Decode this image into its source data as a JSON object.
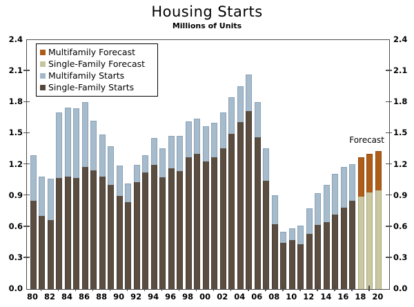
{
  "header": {
    "title": "Housing Starts",
    "subtitle": "Millions of Units"
  },
  "annotations": {
    "forecast_label": "Forecast"
  },
  "legend": [
    {
      "label": "Multifamily Forecast",
      "color": "#ac5a16"
    },
    {
      "label": "Single-Family Forecast",
      "color": "#c6c49c"
    },
    {
      "label": "Multifamily Starts",
      "color": "#a2b8ca"
    },
    {
      "label": "Single-Family Starts",
      "color": "#55473c"
    }
  ],
  "colors": {
    "axis": "#4a4a4a",
    "single_family": {
      "fill": "#5c4d41",
      "edge": "#463b32"
    },
    "multifamily": {
      "fill": "#a6bccd",
      "edge": "#8aa2b5"
    },
    "single_family_forecast": {
      "fill": "#cac8a0",
      "edge": "#a8a67e"
    },
    "multifamily_forecast": {
      "fill": "#b05e17",
      "edge": "#8e4a10"
    }
  },
  "chart_data": {
    "type": "bar",
    "stacked": true,
    "title": "Housing Starts",
    "subtitle": "Millions of Units",
    "units": "millions of units",
    "grid": false,
    "legend_position": "top-left",
    "ylim": [
      0,
      2.4
    ],
    "ytick_step": 0.3,
    "ytick_labels": [
      "0.0",
      "0.3",
      "0.6",
      "0.9",
      "1.2",
      "1.5",
      "1.8",
      "2.1",
      "2.4"
    ],
    "categories": [
      "1980",
      "1981",
      "1982",
      "1983",
      "1984",
      "1985",
      "1986",
      "1987",
      "1988",
      "1989",
      "1990",
      "1991",
      "1992",
      "1993",
      "1994",
      "1995",
      "1996",
      "1997",
      "1998",
      "1999",
      "2000",
      "2001",
      "2002",
      "2003",
      "2004",
      "2005",
      "2006",
      "2007",
      "2008",
      "2009",
      "2010",
      "2011",
      "2012",
      "2013",
      "2014",
      "2015",
      "2016",
      "2017",
      "2018",
      "2019",
      "2020"
    ],
    "xtick_labels": [
      "80",
      "82",
      "84",
      "86",
      "88",
      "90",
      "92",
      "94",
      "96",
      "98",
      "00",
      "02",
      "04",
      "06",
      "08",
      "10",
      "12",
      "14",
      "16",
      "18",
      "20"
    ],
    "forecast_years": [
      "2018",
      "2019",
      "2020"
    ],
    "series": [
      {
        "name": "Single-Family Starts",
        "values": [
          0.852,
          0.705,
          0.663,
          1.068,
          1.084,
          1.072,
          1.179,
          1.146,
          1.081,
          1.003,
          0.895,
          0.84,
          1.03,
          1.126,
          1.198,
          1.076,
          1.161,
          1.134,
          1.271,
          1.302,
          1.231,
          1.273,
          1.359,
          1.499,
          1.611,
          1.716,
          1.465,
          1.046,
          0.622,
          0.445,
          0.471,
          0.431,
          0.535,
          0.618,
          0.648,
          0.715,
          0.782,
          0.849,
          null,
          null,
          null
        ]
      },
      {
        "name": "Multifamily Starts",
        "values": [
          0.44,
          0.379,
          0.399,
          0.635,
          0.666,
          0.67,
          0.626,
          0.475,
          0.407,
          0.373,
          0.298,
          0.174,
          0.17,
          0.162,
          0.259,
          0.278,
          0.316,
          0.34,
          0.346,
          0.339,
          0.338,
          0.33,
          0.346,
          0.349,
          0.345,
          0.352,
          0.336,
          0.309,
          0.284,
          0.109,
          0.116,
          0.178,
          0.246,
          0.307,
          0.355,
          0.397,
          0.392,
          0.354,
          null,
          null,
          null
        ]
      },
      {
        "name": "Single-Family Forecast",
        "values": [
          null,
          null,
          null,
          null,
          null,
          null,
          null,
          null,
          null,
          null,
          null,
          null,
          null,
          null,
          null,
          null,
          null,
          null,
          null,
          null,
          null,
          null,
          null,
          null,
          null,
          null,
          null,
          null,
          null,
          null,
          null,
          null,
          null,
          null,
          null,
          null,
          null,
          null,
          0.89,
          0.93,
          0.95
        ]
      },
      {
        "name": "Multifamily Forecast",
        "values": [
          null,
          null,
          null,
          null,
          null,
          null,
          null,
          null,
          null,
          null,
          null,
          null,
          null,
          null,
          null,
          null,
          null,
          null,
          null,
          null,
          null,
          null,
          null,
          null,
          null,
          null,
          null,
          null,
          null,
          null,
          null,
          null,
          null,
          null,
          null,
          null,
          null,
          null,
          0.38,
          0.375,
          0.38
        ]
      }
    ]
  }
}
